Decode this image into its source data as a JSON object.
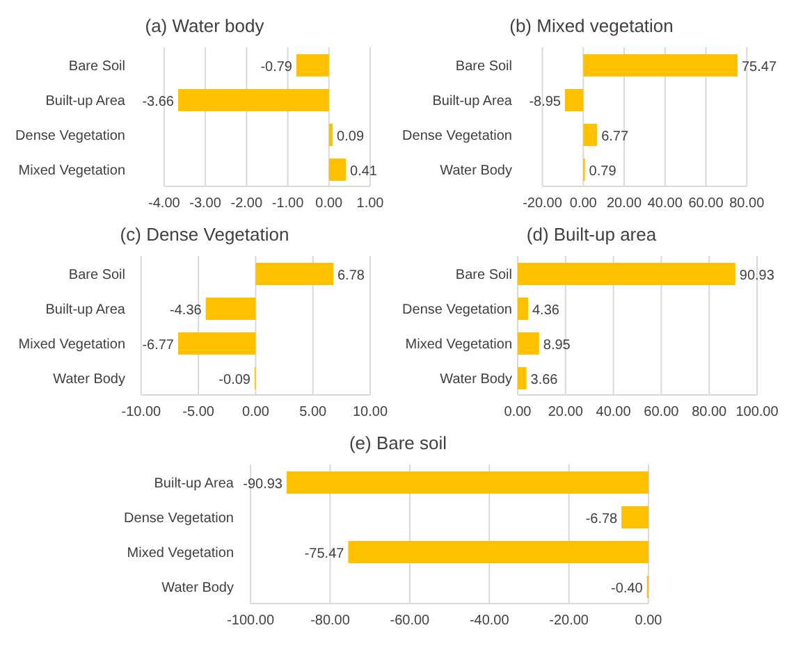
{
  "chart_data": [
    {
      "type": "bar",
      "orientation": "horizontal",
      "title": "(a) Water body",
      "categories": [
        "Bare Soil",
        "Built-up Area",
        "Dense Vegetation",
        "Mixed Vegetation"
      ],
      "color": "#ffc000",
      "values": [
        -0.79,
        -3.66,
        0.09,
        0.41
      ],
      "value_labels": [
        "-0.79",
        "-3.66",
        "0.09",
        "0.41"
      ],
      "xlim": [
        -4,
        1
      ],
      "xticks": [
        {
          "value": -4,
          "label": "-4.00"
        },
        {
          "value": -3,
          "label": "-3.00"
        },
        {
          "value": -2,
          "label": "-2.00"
        },
        {
          "value": -1,
          "label": "-1.00"
        },
        {
          "value": 0,
          "label": "0.00"
        },
        {
          "value": 1,
          "label": "1.00"
        }
      ],
      "grid": "x",
      "legend": false
    },
    {
      "type": "bar",
      "orientation": "horizontal",
      "title": "(b) Mixed vegetation",
      "categories": [
        "Bare Soil",
        "Built-up Area",
        "Dense Vegetation",
        "Water Body"
      ],
      "color": "#ffc000",
      "values": [
        75.47,
        -8.95,
        6.77,
        0.79
      ],
      "value_labels": [
        "75.47",
        "-8.95",
        "6.77",
        "0.79"
      ],
      "xlim": [
        -20,
        80
      ],
      "xticks": [
        {
          "value": -20,
          "label": "-20.00"
        },
        {
          "value": 0,
          "label": "0.00"
        },
        {
          "value": 20,
          "label": "20.00"
        },
        {
          "value": 40,
          "label": "40.00"
        },
        {
          "value": 60,
          "label": "60.00"
        },
        {
          "value": 80,
          "label": "80.00"
        }
      ],
      "grid": "x",
      "legend": false
    },
    {
      "type": "bar",
      "orientation": "horizontal",
      "title": "(c) Dense Vegetation",
      "categories": [
        "Bare Soil",
        "Built-up Area",
        "Mixed Vegetation",
        "Water Body"
      ],
      "color": "#ffc000",
      "values": [
        6.78,
        -4.36,
        -6.77,
        -0.09
      ],
      "value_labels": [
        "6.78",
        "-4.36",
        "-6.77",
        "-0.09"
      ],
      "xlim": [
        -10,
        10
      ],
      "xticks": [
        {
          "value": -10,
          "label": "-10.00"
        },
        {
          "value": -5,
          "label": "-5.00"
        },
        {
          "value": 0,
          "label": "0.00"
        },
        {
          "value": 5,
          "label": "5.00"
        },
        {
          "value": 10,
          "label": "10.00"
        }
      ],
      "grid": "x",
      "legend": false
    },
    {
      "type": "bar",
      "orientation": "horizontal",
      "title": "(d) Built-up area",
      "categories": [
        "Bare Soil",
        "Dense Vegetation",
        "Mixed Vegetation",
        "Water Body"
      ],
      "color": "#ffc000",
      "values": [
        90.93,
        4.36,
        8.95,
        3.66
      ],
      "value_labels": [
        "90.93",
        "4.36",
        "8.95",
        "3.66"
      ],
      "xlim": [
        0,
        100
      ],
      "xticks": [
        {
          "value": 0,
          "label": "0.00"
        },
        {
          "value": 20,
          "label": "20.00"
        },
        {
          "value": 40,
          "label": "40.00"
        },
        {
          "value": 60,
          "label": "60.00"
        },
        {
          "value": 80,
          "label": "80.00"
        },
        {
          "value": 100,
          "label": "100.00"
        }
      ],
      "grid": "x",
      "legend": false
    },
    {
      "type": "bar",
      "orientation": "horizontal",
      "title": "(e) Bare soil",
      "categories": [
        "Built-up Area",
        "Dense Vegetation",
        "Mixed Vegetation",
        "Water Body"
      ],
      "color": "#ffc000",
      "values": [
        -90.93,
        -6.78,
        -75.47,
        -0.4
      ],
      "value_labels": [
        "-90.93",
        "-6.78",
        "-75.47",
        "-0.40"
      ],
      "xlim": [
        -100,
        0
      ],
      "xticks": [
        {
          "value": -100,
          "label": "-100.00"
        },
        {
          "value": -80,
          "label": "-80.00"
        },
        {
          "value": -60,
          "label": "-60.00"
        },
        {
          "value": -40,
          "label": "-40.00"
        },
        {
          "value": -20,
          "label": "-20.00"
        },
        {
          "value": 0,
          "label": "0.00"
        }
      ],
      "grid": "x",
      "legend": false
    }
  ]
}
